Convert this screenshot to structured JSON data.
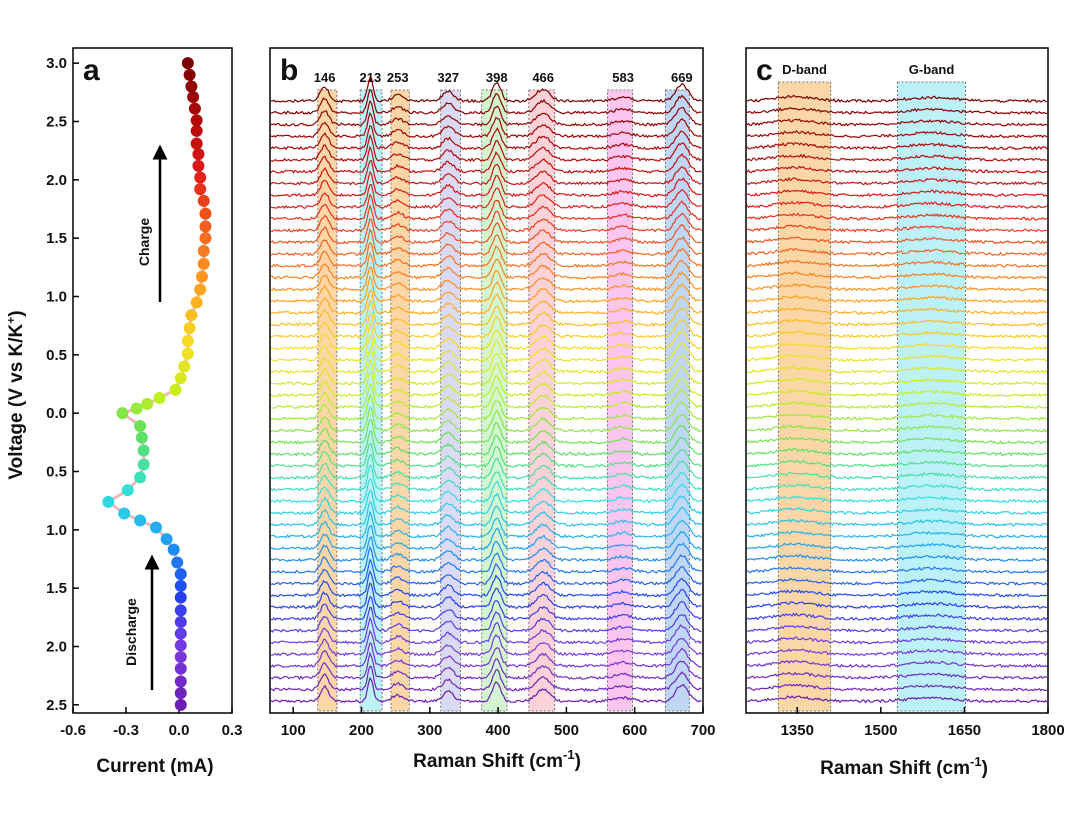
{
  "chart_data": [
    {
      "type": "scatter",
      "label": "a",
      "xlabel": "Current (mA)",
      "ylabel": "Voltage (V vs K/K",
      "ylabel_sup": "+",
      "ylabel_end": ")",
      "xlim": [
        -0.6,
        0.3
      ],
      "xticks": [
        -0.6,
        -0.3,
        {
          "value": 0,
          "label": "0.0"
        },
        0.3
      ],
      "ylim": [
        -2.57,
        3.13
      ],
      "yticks": [
        {
          "value": 3,
          "label": "3.0"
        },
        2.5,
        {
          "value": 2,
          "label": "2.0"
        },
        1.5,
        {
          "value": 1,
          "label": "1.0"
        },
        0.5,
        {
          "value": 0,
          "label": "0.0"
        },
        {
          "value": -0.5,
          "label": "0.5"
        },
        {
          "value": -1,
          "label": "1.0"
        },
        {
          "value": -1.5,
          "label": "1.5"
        },
        {
          "value": -2,
          "label": "2.0"
        },
        {
          "value": -2.5,
          "label": "2.5"
        }
      ],
      "x": [
        0.01,
        0.01,
        0.01,
        0.01,
        0.01,
        0.01,
        0.01,
        0.01,
        0.01,
        0.01,
        0.01,
        0.01,
        -0.01,
        -0.03,
        -0.07,
        -0.13,
        -0.22,
        -0.31,
        -0.4,
        -0.29,
        -0.22,
        -0.2,
        -0.2,
        -0.21,
        -0.22,
        -0.32,
        -0.24,
        -0.18,
        -0.11,
        -0.02,
        0.01,
        0.03,
        0.05,
        0.05,
        0.06,
        0.07,
        0.1,
        0.12,
        0.13,
        0.14,
        0.14,
        0.15,
        0.15,
        0.15,
        0.14,
        0.12,
        0.12,
        0.11,
        0.11,
        0.1,
        0.1,
        0.1,
        0.09,
        0.08,
        0.07,
        0.06,
        0.05
      ],
      "values": [
        -2.5,
        -2.4,
        -2.3,
        -2.19,
        -2.09,
        -1.99,
        -1.89,
        -1.79,
        -1.69,
        -1.58,
        -1.48,
        -1.38,
        -1.28,
        -1.17,
        -1.08,
        -0.98,
        -0.92,
        -0.86,
        -0.76,
        -0.66,
        -0.55,
        -0.44,
        -0.32,
        -0.21,
        -0.11,
        0.0,
        0.04,
        0.08,
        0.13,
        0.2,
        0.3,
        0.4,
        0.51,
        0.62,
        0.73,
        0.84,
        0.95,
        1.06,
        1.17,
        1.28,
        1.39,
        1.5,
        1.6,
        1.71,
        1.82,
        1.92,
        2.02,
        2.12,
        2.22,
        2.31,
        2.42,
        2.51,
        2.61,
        2.71,
        2.8,
        2.9,
        3.0
      ],
      "colormap": [
        "#6a1fb0",
        "#7a3ae0",
        "#2040f0",
        "#20a0f0",
        "#30e0e0",
        "#60e060",
        "#c0f020",
        "#f5e020",
        "#ffa020",
        "#f06020",
        "#e01818",
        "#b00808",
        "#7a0000"
      ],
      "line_color": "#f2b8b8",
      "annotations": [
        "Charge",
        "Discharge"
      ]
    },
    {
      "type": "spectra",
      "label": "b",
      "xlabel": "Raman Shift (cm",
      "xlabel_sup": "-1",
      "xlabel_end": ")",
      "xlim": [
        66,
        700
      ],
      "xticks": [
        100,
        200,
        300,
        400,
        500,
        600,
        700
      ],
      "ylim": [
        -1,
        55.5
      ],
      "traces": 52,
      "peaks": [
        146,
        213,
        253,
        327,
        398,
        466,
        583,
        669
      ],
      "peak_heights": [
        1.2,
        2.0,
        0.5,
        0.8,
        1.6,
        1.0,
        0.3,
        1.4
      ],
      "peak_widths": [
        6,
        4,
        8,
        8,
        6,
        10,
        12,
        9
      ],
      "bands": [
        {
          "from": 136,
          "to": 164,
          "color": "#f9c98a"
        },
        {
          "from": 198,
          "to": 230,
          "color": "#a6ecf4"
        },
        {
          "from": 243,
          "to": 270,
          "color": "#f9c98a"
        },
        {
          "from": 316,
          "to": 345,
          "color": "#cfcdf2"
        },
        {
          "from": 376,
          "to": 413,
          "color": "#c4f2c0"
        },
        {
          "from": 445,
          "to": 483,
          "color": "#f9c3cb"
        },
        {
          "from": 560,
          "to": 597,
          "color": "#f8b2e8"
        },
        {
          "from": 645,
          "to": 680,
          "color": "#a9c9f2"
        }
      ]
    },
    {
      "type": "spectra",
      "label": "c",
      "xlabel": "Raman Shift (cm",
      "xlabel_sup": "-1",
      "xlabel_end": ")",
      "xlim": [
        1258,
        1800
      ],
      "xticks": [
        1350,
        1500,
        1650,
        1800
      ],
      "ylim": [
        -1,
        55.5
      ],
      "traces": 52,
      "peaks": [
        1345,
        1590
      ],
      "peak_heights": [
        0.35,
        0.3
      ],
      "peak_widths": [
        35,
        40
      ],
      "bands": [
        {
          "from": 1316,
          "to": 1410,
          "color": "#f9c98a",
          "label": "D-band"
        },
        {
          "from": 1530,
          "to": 1652,
          "color": "#a6ecf4",
          "label": "G-band"
        }
      ]
    }
  ]
}
